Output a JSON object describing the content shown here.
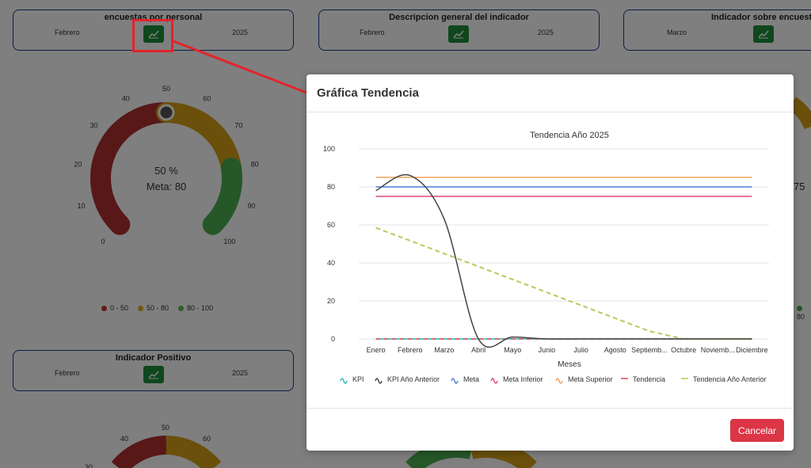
{
  "dashboard": {
    "cards": [
      {
        "title": "encuestas por personal",
        "month": "Febrero",
        "year": "2025"
      },
      {
        "title": "Descripcion general del indicador",
        "month": "Febrero",
        "year": "2025"
      },
      {
        "title": "Indicador sobre encuesta",
        "month": "Marzo",
        "year": ""
      },
      {
        "title": "Indicador Positivo",
        "month": "Febrero",
        "year": "2025"
      }
    ],
    "gauge1": {
      "value_text": "50 %",
      "meta_text": "Meta: 80",
      "ticks": [
        "0",
        "10",
        "20",
        "30",
        "40",
        "50",
        "60",
        "70",
        "80",
        "90",
        "100"
      ],
      "value": 50
    },
    "gauge2_ticks": [
      "40",
      "50",
      "60",
      "30"
    ],
    "right_partial": "75",
    "right_legend_partial": "80",
    "legend": [
      {
        "label": "0 - 50",
        "color": "#c0392b"
      },
      {
        "label": "50 - 80",
        "color": "#e0b020"
      },
      {
        "label": "80 - 100",
        "color": "#5cb85c"
      }
    ],
    "colors": {
      "red": "#b03030",
      "yellow": "#d4a017",
      "green": "#4caf50",
      "card_border": "#1f3a93",
      "button_green": "#1f8f3a"
    },
    "icons": {
      "chart_button": "trend-chart-icon"
    }
  },
  "modal": {
    "title": "Gráfica Tendencia",
    "cancel_label": "Cancelar"
  },
  "chart_data": {
    "type": "line",
    "title": "Tendencia Año 2025",
    "xlabel": "Meses",
    "ylabel": "",
    "categories": [
      "Enero",
      "Febrero",
      "Marzo",
      "Abril",
      "Mayo",
      "Junio",
      "Julio",
      "Agosto",
      "Septiemb...",
      "Octubre",
      "Noviemb...",
      "Diciembre"
    ],
    "ylim": [
      0,
      100
    ],
    "yticks": [
      0,
      20,
      40,
      60,
      80,
      100
    ],
    "grid": true,
    "legend_position": "bottom",
    "series": [
      {
        "name": "KPI",
        "color": "#1fbfb8",
        "style": "solid",
        "values": [
          0,
          0,
          0,
          0,
          0,
          0,
          0,
          0,
          0,
          0,
          0,
          0
        ]
      },
      {
        "name": "KPI Año Anterior",
        "color": "#444444",
        "style": "solid",
        "values": [
          78,
          86,
          63,
          0,
          1,
          0,
          0,
          0,
          0,
          0,
          0,
          0
        ]
      },
      {
        "name": "Meta",
        "color": "#4a7fd4",
        "style": "solid",
        "values": [
          80,
          80,
          80,
          80,
          80,
          80,
          80,
          80,
          80,
          80,
          80,
          80
        ]
      },
      {
        "name": "Meta Inferior",
        "color": "#e0457b",
        "style": "solid",
        "values": [
          75,
          75,
          75,
          75,
          75,
          75,
          75,
          75,
          75,
          75,
          75,
          75
        ]
      },
      {
        "name": "Meta Superior",
        "color": "#f5a35c",
        "style": "solid",
        "values": [
          85,
          85,
          85,
          85,
          85,
          85,
          85,
          85,
          85,
          85,
          85,
          85
        ]
      },
      {
        "name": "Tendencia",
        "color": "#e04a4a",
        "style": "dashed",
        "values": [
          0,
          0,
          0,
          0,
          0,
          0,
          0,
          0,
          0,
          0,
          0,
          0
        ]
      },
      {
        "name": "Tendencia Año Anterior",
        "color": "#b5cc5a",
        "style": "dashed",
        "values": [
          58.5,
          51.7,
          44.9,
          38.1,
          31.3,
          24.5,
          17.7,
          10.9,
          4.1,
          0,
          0,
          0
        ]
      }
    ]
  }
}
